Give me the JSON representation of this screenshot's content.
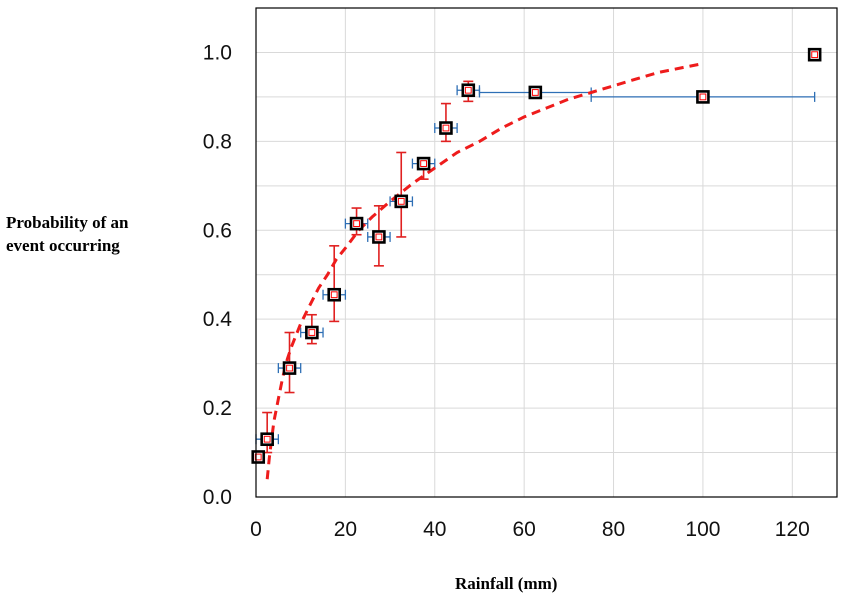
{
  "chart_data": {
    "type": "scatter",
    "title": "",
    "xlabel": "Rainfall (mm)",
    "ylabel_lines": [
      "Probability of an",
      "event occurring"
    ],
    "xlim": [
      0,
      130
    ],
    "ylim": [
      0.0,
      1.1
    ],
    "x_ticks": [
      "0",
      "20",
      "40",
      "60",
      "80",
      "100",
      "120"
    ],
    "y_ticks": [
      "0.0",
      "0.2",
      "0.4",
      "0.6",
      "0.8",
      "1.0"
    ],
    "grid": true,
    "legend": "none",
    "colors": {
      "marker_edge": "#000000",
      "marker_inner": "#ff0000",
      "y_error": "#e02020",
      "x_error": "#2e6fb5",
      "trend": "#ee1c1c",
      "grid": "#d9d9d9"
    },
    "points": [
      {
        "x": 0.5,
        "y": 0.09,
        "xerr": [
          0,
          0
        ],
        "yerr": [
          0.09,
          0.09
        ]
      },
      {
        "x": 2.5,
        "y": 0.13,
        "xerr": [
          2.5,
          2.5
        ],
        "yerr": [
          0.1,
          0.19
        ]
      },
      {
        "x": 7.5,
        "y": 0.29,
        "xerr": [
          2.5,
          2.5
        ],
        "yerr": [
          0.235,
          0.37
        ]
      },
      {
        "x": 12.5,
        "y": 0.37,
        "xerr": [
          2.5,
          2.5
        ],
        "yerr": [
          0.345,
          0.41
        ]
      },
      {
        "x": 17.5,
        "y": 0.455,
        "xerr": [
          2.5,
          2.5
        ],
        "yerr": [
          0.395,
          0.565
        ]
      },
      {
        "x": 22.5,
        "y": 0.615,
        "xerr": [
          2.5,
          2.5
        ],
        "yerr": [
          0.59,
          0.65
        ]
      },
      {
        "x": 27.5,
        "y": 0.585,
        "xerr": [
          2.5,
          2.5
        ],
        "yerr": [
          0.52,
          0.655
        ]
      },
      {
        "x": 32.5,
        "y": 0.665,
        "xerr": [
          2.5,
          2.5
        ],
        "yerr": [
          0.585,
          0.775
        ]
      },
      {
        "x": 37.5,
        "y": 0.75,
        "xerr": [
          2.5,
          2.5
        ],
        "yerr": [
          0.715,
          0.755
        ]
      },
      {
        "x": 42.5,
        "y": 0.83,
        "xerr": [
          2.5,
          2.5
        ],
        "yerr": [
          0.8,
          0.885
        ]
      },
      {
        "x": 47.5,
        "y": 0.915,
        "xerr": [
          2.5,
          2.5
        ],
        "yerr": [
          0.89,
          0.935
        ]
      },
      {
        "x": 62.5,
        "y": 0.91,
        "xerr": [
          12.5,
          12.5
        ],
        "yerr": [
          0.91,
          0.91
        ]
      },
      {
        "x": 100,
        "y": 0.9,
        "xerr": [
          25,
          25
        ],
        "yerr": [
          0.89,
          0.905
        ]
      },
      {
        "x": 125,
        "y": 0.995,
        "xerr": [
          0,
          0
        ],
        "yerr": [
          0.995,
          0.995
        ]
      }
    ],
    "trend": {
      "style": "dashed",
      "x": [
        2.5,
        3,
        4,
        5,
        6,
        7,
        8,
        10,
        12,
        14,
        16,
        18,
        20,
        23,
        26,
        30,
        35,
        40,
        45,
        50,
        55,
        60,
        65,
        70,
        75,
        80,
        85,
        90,
        95,
        100
      ],
      "y": [
        0.04,
        0.09,
        0.17,
        0.22,
        0.27,
        0.31,
        0.34,
        0.39,
        0.43,
        0.47,
        0.5,
        0.535,
        0.56,
        0.6,
        0.63,
        0.665,
        0.705,
        0.74,
        0.775,
        0.8,
        0.83,
        0.855,
        0.875,
        0.895,
        0.91,
        0.925,
        0.94,
        0.955,
        0.965,
        0.975
      ]
    }
  }
}
